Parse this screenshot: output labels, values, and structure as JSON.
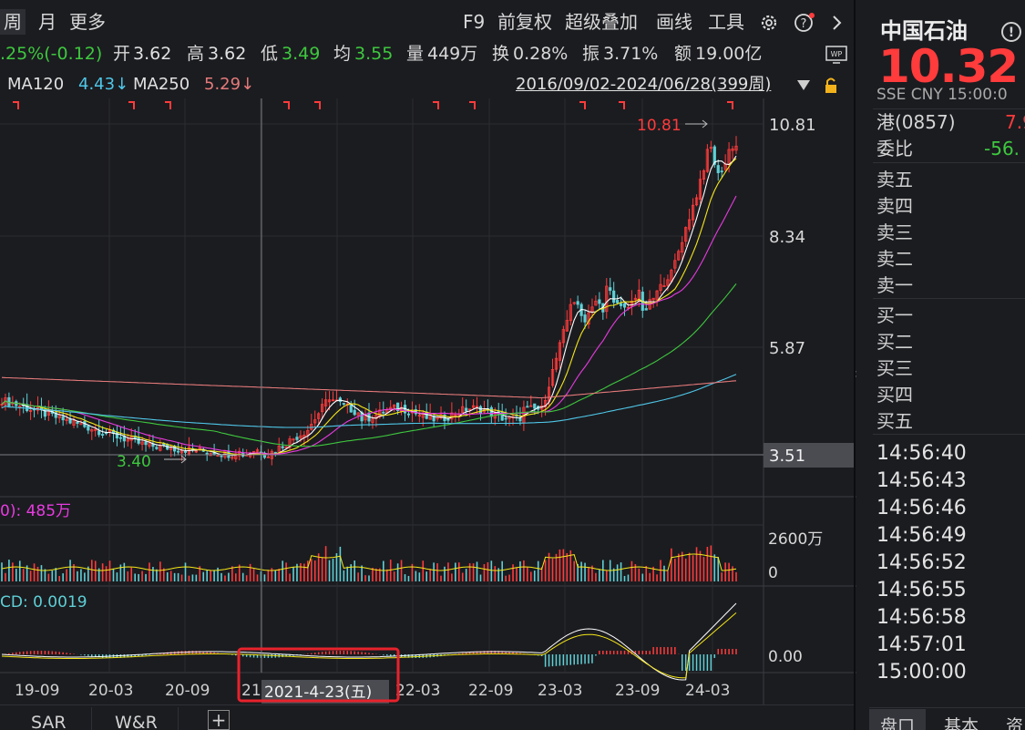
{
  "toolbar": {
    "period_week": "周",
    "period_month": "月",
    "more": "更多",
    "f9": "F9",
    "adjust": "前复权",
    "overlay": "超级叠加",
    "draw": "画线",
    "tools": "工具"
  },
  "infobar": {
    "change": ".25%(-0.12)",
    "open_label": "开",
    "open": "3.62",
    "high_label": "高",
    "high": "3.62",
    "low_label": "低",
    "low": "3.49",
    "avg_label": "均",
    "avg": "3.55",
    "vol_label": "量",
    "vol": "449万",
    "turnover_label": "换",
    "turnover": "0.28%",
    "amplitude_label": "振",
    "amplitude": "3.71%",
    "amount_label": "额",
    "amount": "19.00亿"
  },
  "mabar": {
    "ma120_label": "MA120",
    "ma120": "4.43↓",
    "ma250_label": "MA250",
    "ma250": "5.29↓",
    "range": "2016/09/02-2024/06/28(399周)"
  },
  "chart": {
    "price_ticks": [
      "10.81",
      "8.34",
      "5.87"
    ],
    "crosshair_price": "3.51",
    "max_label": "10.81",
    "min_label": "3.40",
    "volume_title": "0): 485万",
    "volume_ticks": [
      "2600万",
      "0"
    ],
    "macd_title": "CD: 0.0019",
    "macd_tick": "0.00",
    "x_ticks": [
      "19-09",
      "20-03",
      "20-09",
      "21",
      "22-03",
      "22-09",
      "23-03",
      "23-09",
      "24-03"
    ],
    "crosshair_date": "2021-4-23(五)",
    "colors": {
      "up": "#ff3b3b",
      "down": "#5ed0d6",
      "ma5": "#ffffff",
      "ma10": "#f5e617",
      "ma20": "#e83be0",
      "ma60": "#3ec83e",
      "ma120": "#4fc7e8",
      "ma250": "#e57a7a",
      "highlight": "#e8222c"
    }
  },
  "right_panel": {
    "name": "中国石油",
    "price": "10.32",
    "meta": "SSE  CNY  15:00:0",
    "hk_label": "港(0857)",
    "hk_value": "7.9",
    "ratio_label": "委比",
    "ratio_value": "-56.",
    "asks": [
      "卖五",
      "卖四",
      "卖三",
      "卖二",
      "卖一"
    ],
    "bids": [
      "买一",
      "买二",
      "买三",
      "买四",
      "买五"
    ],
    "ticks": [
      "14:56:40",
      "14:56:43",
      "14:56:46",
      "14:56:49",
      "14:56:52",
      "14:56:55",
      "14:56:58",
      "14:57:01",
      "15:00:00"
    ],
    "tabs": [
      "盘口",
      "基本",
      "资"
    ]
  },
  "bottombar": {
    "sar": "SAR",
    "wr": "W&R",
    "add": "+"
  }
}
